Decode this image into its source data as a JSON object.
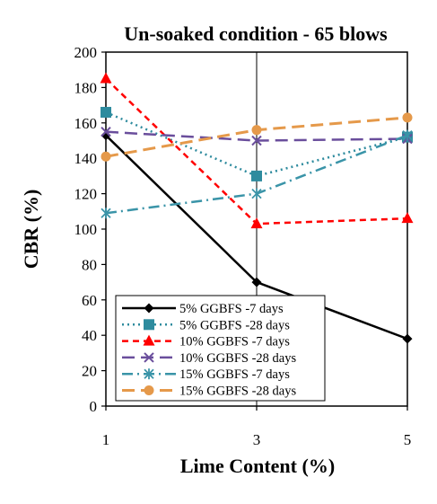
{
  "chart_data": {
    "type": "line",
    "title": "Un-soaked condition - 65 blows",
    "xlabel": "Lime Content (%)",
    "ylabel": "CBR (%)",
    "x": [
      1,
      3,
      5
    ],
    "xlim": [
      1,
      5
    ],
    "ylim": [
      0,
      200
    ],
    "y_ticks": [
      0,
      20,
      40,
      60,
      80,
      100,
      120,
      140,
      160,
      180,
      200
    ],
    "x_ticks": [
      1,
      3,
      5
    ],
    "grid": "vertical at x=3 only",
    "legend_position": "bottom-left inside plot",
    "series": [
      {
        "name": "5% GGBFS -7 days",
        "values": [
          153,
          70,
          38
        ],
        "color": "#000000",
        "dash": "solid",
        "marker": "diamond",
        "width": 2.5
      },
      {
        "name": "5% GGBFS -28 days",
        "values": [
          166,
          130,
          152
        ],
        "color": "#2e8b9e",
        "dash": "dot",
        "marker": "square",
        "width": 2.5
      },
      {
        "name": "10% GGBFS -7 days",
        "values": [
          185,
          103,
          106
        ],
        "color": "#ff0000",
        "dash": "dash",
        "marker": "triangle",
        "width": 2.5
      },
      {
        "name": "10% GGBFS -28 days",
        "values": [
          155,
          150,
          151
        ],
        "color": "#6a4e9c",
        "dash": "longdash",
        "marker": "x",
        "width": 2.5
      },
      {
        "name": "15% GGBFS -7 days",
        "values": [
          109,
          120,
          153
        ],
        "color": "#3a94a8",
        "dash": "dashdot",
        "marker": "star",
        "width": 2.5
      },
      {
        "name": "15% GGBFS -28 days",
        "values": [
          141,
          156,
          163
        ],
        "color": "#e5994a",
        "dash": "longdash",
        "marker": "circle",
        "width": 3
      }
    ]
  }
}
